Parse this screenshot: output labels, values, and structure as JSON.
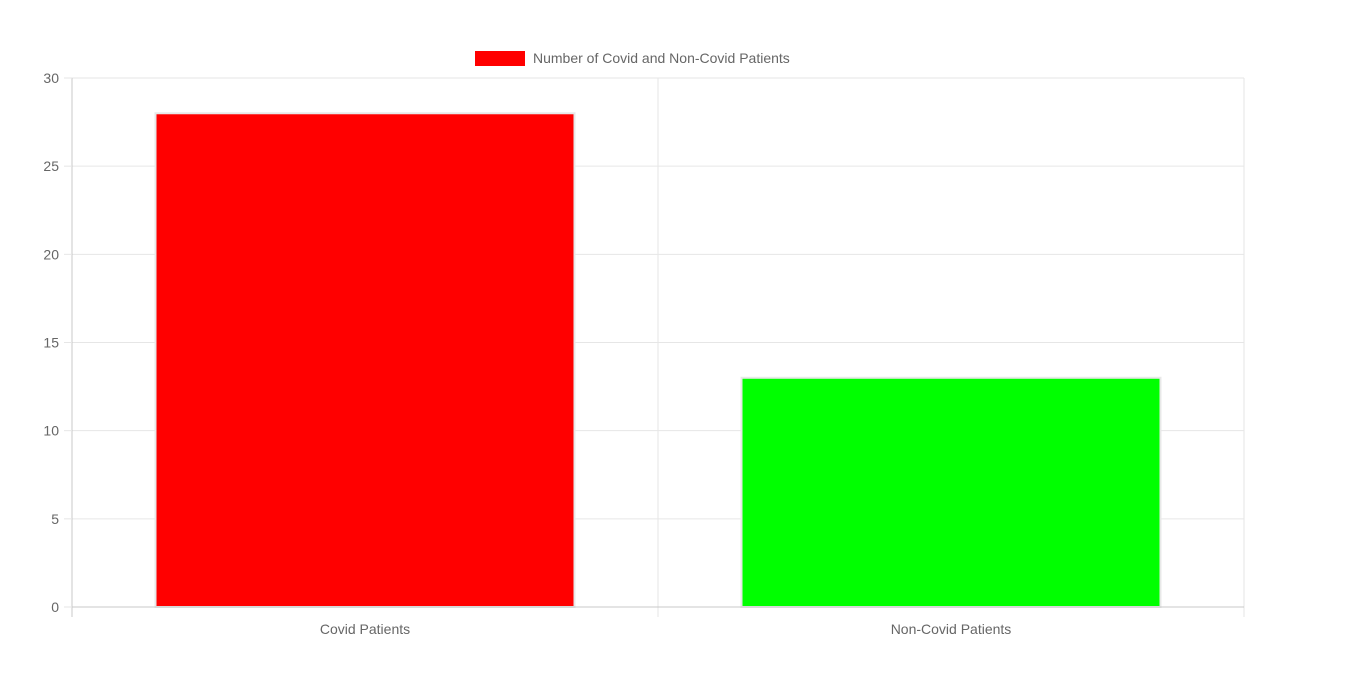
{
  "chart_data": {
    "type": "bar",
    "categories": [
      "Covid Patients",
      "Non-Covid Patients"
    ],
    "series": [
      {
        "name": "Number of Covid and Non-Covid Patients",
        "values": [
          28,
          13
        ],
        "colors": [
          "#ff0000",
          "#00ff00"
        ]
      }
    ],
    "legend": {
      "label": "Number of Covid and Non-Covid Patients",
      "position": "top",
      "swatch_color": "#ff0000"
    },
    "ylim": [
      0,
      30
    ],
    "yticks": [
      0,
      5,
      10,
      15,
      20,
      25,
      30
    ],
    "grid": true,
    "colors": {
      "grid": "#e6e6e6",
      "axis": "#c8c8c8",
      "text": "#666666",
      "bar_border": "#e8e8e8"
    }
  }
}
